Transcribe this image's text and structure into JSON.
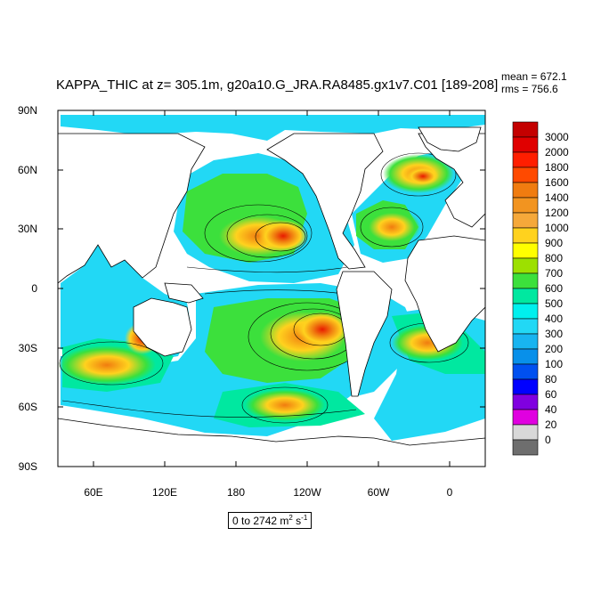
{
  "title": "KAPPA_THIC at z= 305.1m, g20a10.G_JRA.RA8485.gx1v7.C01 [189-208]",
  "stats": {
    "mean": "mean = 672.1",
    "rms": "rms = 756.6"
  },
  "units": {
    "prefix": "0 to 2742 m",
    "exp1": "2",
    "mid": " s",
    "exp2": "-1"
  },
  "map": {
    "lat_ticks": [
      "90N",
      "60N",
      "30N",
      "0",
      "30S",
      "60S",
      "90S"
    ],
    "lon_ticks": [
      "60E",
      "120E",
      "180",
      "120W",
      "60W",
      "0"
    ],
    "land_color": "#ffffff"
  },
  "colorbar": {
    "levels": [
      "3000",
      "2000",
      "1800",
      "1600",
      "1400",
      "1200",
      "1000",
      "900",
      "800",
      "700",
      "600",
      "500",
      "400",
      "300",
      "200",
      "100",
      "80",
      "60",
      "40",
      "20",
      "0"
    ],
    "colors": [
      "#c40000",
      "#e00000",
      "#ff1e00",
      "#ff4a00",
      "#f07c10",
      "#f29420",
      "#f5a83a",
      "#ffd21e",
      "#ffff00",
      "#9de000",
      "#3ce03c",
      "#00e8a0",
      "#00f0ee",
      "#22d8f5",
      "#18b4f0",
      "#0890ea",
      "#0050f0",
      "#0000ff",
      "#8000e0",
      "#e000e0",
      "#d8d8d8",
      "#6e6e6e"
    ]
  }
}
